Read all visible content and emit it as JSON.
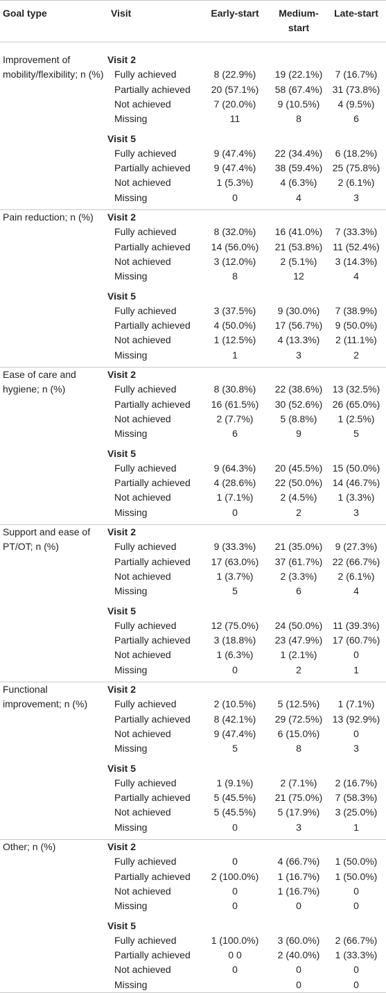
{
  "header": [
    "Goal type",
    "Visit",
    "Early-start",
    "Medium-start",
    "Late-start"
  ],
  "groups": [
    {
      "goal": "Improvement of mobility/flexibility; n (%)",
      "visits": [
        {
          "visit": "Visit 2",
          "rows": [
            {
              "label": "Fully achieved",
              "values": [
                "8 (22.9%)",
                "19 (22.1%)",
                "7 (16.7%)"
              ]
            },
            {
              "label": "Partially achieved",
              "values": [
                "20 (57.1%)",
                "58 (67.4%)",
                "31 (73.8%)"
              ]
            },
            {
              "label": "Not achieved",
              "values": [
                "7 (20.0%)",
                "9 (10.5%)",
                "4 (9.5%)"
              ]
            },
            {
              "label": "Missing",
              "values": [
                "11",
                "8",
                "6"
              ]
            }
          ]
        },
        {
          "visit": "Visit 5",
          "rows": [
            {
              "label": "Fully achieved",
              "values": [
                "9 (47.4%)",
                "22 (34.4%)",
                "6 (18.2%)"
              ]
            },
            {
              "label": "Partially achieved",
              "values": [
                "9 (47.4%)",
                "38 (59.4%)",
                "25 (75.8%)"
              ]
            },
            {
              "label": "Not achieved",
              "values": [
                "1 (5.3%)",
                "4 (6.3%)",
                "2 (6.1%)"
              ]
            },
            {
              "label": "Missing",
              "values": [
                "0",
                "4",
                "3"
              ]
            }
          ]
        }
      ]
    },
    {
      "goal": "Pain reduction; n (%)",
      "visits": [
        {
          "visit": "Visit 2",
          "rows": [
            {
              "label": "Fully achieved",
              "values": [
                "8 (32.0%)",
                "16 (41.0%)",
                "7 (33.3%)"
              ]
            },
            {
              "label": "Partially achieved",
              "values": [
                "14 (56.0%)",
                "21 (53.8%)",
                "11 (52.4%)"
              ]
            },
            {
              "label": "Not achieved",
              "values": [
                "3 (12.0%)",
                "2 (5.1%)",
                "3 (14.3%)"
              ]
            },
            {
              "label": "Missing",
              "values": [
                "8",
                "12",
                "4"
              ]
            }
          ]
        },
        {
          "visit": "Visit 5",
          "rows": [
            {
              "label": "Fully achieved",
              "values": [
                "3 (37.5%)",
                "9 (30.0%)",
                "7 (38.9%)"
              ]
            },
            {
              "label": "Partially achieved",
              "values": [
                "4 (50.0%)",
                "17 (56.7%)",
                "9 (50.0%)"
              ]
            },
            {
              "label": "Not achieved",
              "values": [
                "1 (12.5%)",
                "4 (13.3%)",
                "2 (11.1%)"
              ]
            },
            {
              "label": "Missing",
              "values": [
                "1",
                "3",
                "2"
              ]
            }
          ]
        }
      ]
    },
    {
      "goal": "Ease of care and hygiene; n (%)",
      "visits": [
        {
          "visit": "Visit 2",
          "rows": [
            {
              "label": "Fully achieved",
              "values": [
                "8 (30.8%)",
                "22 (38.6%)",
                "13 (32.5%)"
              ]
            },
            {
              "label": "Partially achieved",
              "values": [
                "16 (61.5%)",
                "30 (52.6%)",
                "26 (65.0%)"
              ]
            },
            {
              "label": "Not achieved",
              "values": [
                "2 (7.7%)",
                "5 (8.8%)",
                "1 (2.5%)"
              ]
            },
            {
              "label": "Missing",
              "values": [
                "6",
                "9",
                "5"
              ]
            }
          ]
        },
        {
          "visit": "Visit 5",
          "rows": [
            {
              "label": "Fully achieved",
              "values": [
                "9 (64.3%)",
                "20 (45.5%)",
                "15 (50.0%)"
              ]
            },
            {
              "label": "Partially achieved",
              "values": [
                "4 (28.6%)",
                "22 (50.0%)",
                "14 (46.7%)"
              ]
            },
            {
              "label": "Not achieved",
              "values": [
                "1 (7.1%)",
                "2 (4.5%)",
                "1 (3.3%)"
              ]
            },
            {
              "label": "Missing",
              "values": [
                "0",
                "2",
                "3"
              ]
            }
          ]
        }
      ]
    },
    {
      "goal": "Support and ease of PT/OT; n (%)",
      "visits": [
        {
          "visit": "Visit 2",
          "rows": [
            {
              "label": "Fully achieved",
              "values": [
                "9 (33.3%)",
                "21 (35.0%)",
                "9 (27.3%)"
              ]
            },
            {
              "label": "Partially achieved",
              "values": [
                "17 (63.0%)",
                "37 (61.7%)",
                "22 (66.7%)"
              ]
            },
            {
              "label": "Not achieved",
              "values": [
                "1 (3.7%)",
                "2 (3.3%)",
                "2 (6.1%)"
              ]
            },
            {
              "label": "Missing",
              "values": [
                "5",
                "6",
                "4"
              ]
            }
          ]
        },
        {
          "visit": "Visit 5",
          "rows": [
            {
              "label": "Fully achieved",
              "values": [
                "12 (75.0%)",
                "24 (50.0%)",
                "11 (39.3%)"
              ]
            },
            {
              "label": "Partially achieved",
              "values": [
                "3 (18.8%)",
                "23 (47.9%)",
                "17 (60.7%)"
              ]
            },
            {
              "label": "Not achieved",
              "values": [
                "1 (6.3%)",
                "1 (2.1%)",
                "0"
              ]
            },
            {
              "label": "Missing",
              "values": [
                "0",
                "2",
                "1"
              ]
            }
          ]
        }
      ]
    },
    {
      "goal": "Functional improvement; n (%)",
      "visits": [
        {
          "visit": "Visit 2",
          "rows": [
            {
              "label": "Fully achieved",
              "values": [
                "2 (10.5%)",
                "5 (12.5%)",
                "1 (7.1%)"
              ]
            },
            {
              "label": "Partially achieved",
              "values": [
                "8 (42.1%)",
                "29 (72.5%)",
                "13 (92.9%)"
              ]
            },
            {
              "label": "Not achieved",
              "values": [
                "9 (47.4%)",
                "6 (15.0%)",
                "0"
              ]
            },
            {
              "label": "Missing",
              "values": [
                "5",
                "8",
                "3"
              ]
            }
          ]
        },
        {
          "visit": "Visit 5",
          "rows": [
            {
              "label": "Fully achieved",
              "values": [
                "1 (9.1%)",
                "2 (7.1%)",
                "2 (16.7%)"
              ]
            },
            {
              "label": "Partially achieved",
              "values": [
                "5 (45.5%)",
                "21 (75.0%)",
                "7 (58.3%)"
              ]
            },
            {
              "label": "Not achieved",
              "values": [
                "5 (45.5%)",
                "5 (17.9%)",
                "3 (25.0%)"
              ]
            },
            {
              "label": "Missing",
              "values": [
                "0",
                "3",
                "1"
              ]
            }
          ]
        }
      ]
    },
    {
      "goal": "Other; n (%)",
      "visits": [
        {
          "visit": "Visit 2",
          "rows": [
            {
              "label": "Fully achieved",
              "values": [
                "0",
                "4 (66.7%)",
                "1 (50.0%)"
              ]
            },
            {
              "label": "Partially achieved",
              "values": [
                "2 (100.0%)",
                "1 (16.7%)",
                "1 (50.0%)"
              ]
            },
            {
              "label": "Not achieved",
              "values": [
                "0",
                "1 (16.7%)",
                "0"
              ]
            },
            {
              "label": "Missing",
              "values": [
                "0",
                "0",
                "0"
              ]
            }
          ]
        },
        {
          "visit": "Visit 5",
          "rows": [
            {
              "label": "Fully achieved",
              "values": [
                "1 (100.0%)",
                "3 (60.0%)",
                "2 (66.7%)"
              ]
            },
            {
              "label": "Partially achieved",
              "values": [
                "0 0",
                "2 (40.0%)",
                "1 (33.3%)"
              ]
            },
            {
              "label": "Not achieved",
              "values": [
                "0",
                "0",
                "0"
              ]
            },
            {
              "label": "Missing",
              "values": [
                null,
                "0",
                "0"
              ]
            }
          ]
        }
      ]
    }
  ]
}
